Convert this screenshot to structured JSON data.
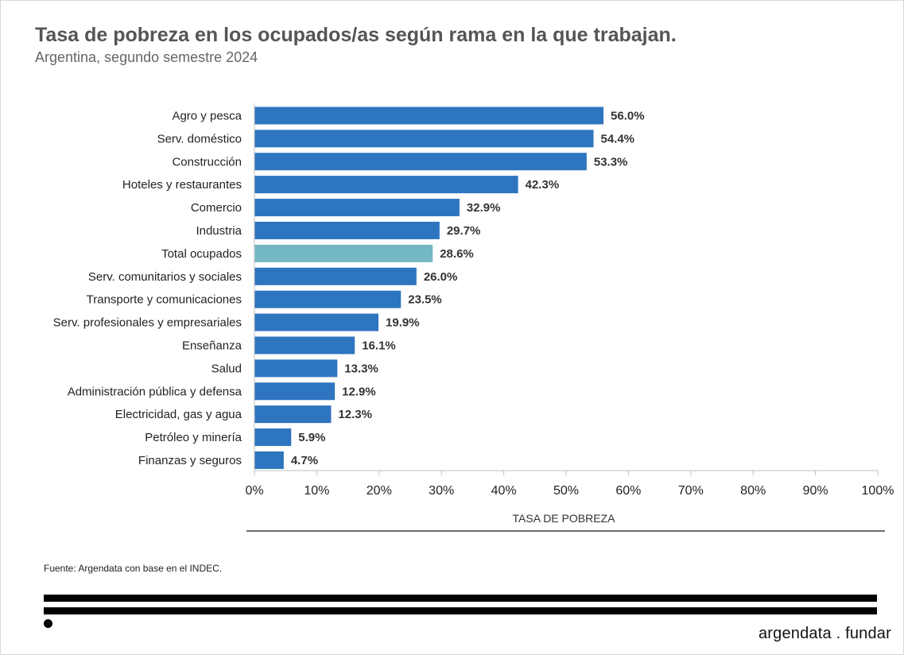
{
  "header": {
    "title": "Tasa de pobreza en los ocupados/as según rama en la que trabajan.",
    "subtitle": "Argentina, segundo semestre 2024"
  },
  "footer": {
    "source": "Fuente: Argendata con base en el INDEC.",
    "brand": "argendata . fundar"
  },
  "colors": {
    "bar": "#2e75bf",
    "highlight": "#74b8c6",
    "axis": "#bfbfbf",
    "text": "#333333"
  },
  "chart_data": {
    "type": "bar",
    "orientation": "horizontal",
    "xlabel": "TASA DE POBREZA",
    "xlim": [
      0,
      100
    ],
    "xticks": [
      "0%",
      "10%",
      "20%",
      "30%",
      "40%",
      "50%",
      "60%",
      "70%",
      "80%",
      "90%",
      "100%"
    ],
    "categories": [
      "Agro y pesca",
      "Serv. doméstico",
      "Construcción",
      "Hoteles y restaurantes",
      "Comercio",
      "Industria",
      "Total ocupados",
      "Serv. comunitarios y sociales",
      "Transporte y comunicaciones",
      "Serv. profesionales y empresariales",
      "Enseñanza",
      "Salud",
      "Administración pública y defensa",
      "Electricidad, gas y agua",
      "Petróleo y minería",
      "Finanzas y seguros"
    ],
    "values": [
      56.0,
      54.4,
      53.3,
      42.3,
      32.9,
      29.7,
      28.6,
      26.0,
      23.5,
      19.9,
      16.1,
      13.3,
      12.9,
      12.3,
      5.9,
      4.7
    ],
    "labels": [
      "56.0%",
      "54.4%",
      "53.3%",
      "42.3%",
      "32.9%",
      "29.7%",
      "28.6%",
      "26.0%",
      "23.5%",
      "19.9%",
      "16.1%",
      "13.3%",
      "12.9%",
      "12.3%",
      "5.9%",
      "4.7%"
    ],
    "highlight": "Total ocupados",
    "grid": false
  }
}
